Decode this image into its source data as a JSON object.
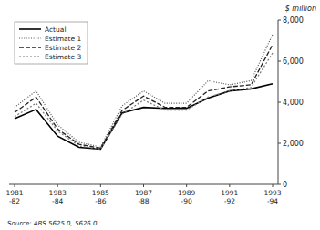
{
  "chart_data": {
    "type": "line",
    "categories": [
      "1981\n-82",
      null,
      "1983\n-84",
      null,
      "1985\n-86",
      null,
      "1987\n-88",
      null,
      "1989\n-90",
      null,
      "1991\n-92",
      null,
      "1993\n-94"
    ],
    "series": [
      {
        "name": "Actual",
        "color": "#000000",
        "line_style": "solid",
        "values": [
          3200,
          3650,
          2350,
          1800,
          1720,
          3480,
          3750,
          3700,
          3700,
          4200,
          4550,
          4650,
          4900
        ]
      },
      {
        "name": "Estimate 1",
        "color": "#555555",
        "line_style": "dotted",
        "values": [
          3750,
          4550,
          2900,
          2050,
          1820,
          3820,
          4550,
          3950,
          3950,
          5050,
          4850,
          5050,
          7300
        ]
      },
      {
        "name": "Estimate 2",
        "color": "#222222",
        "line_style": "dashed",
        "values": [
          3500,
          4250,
          2700,
          1950,
          1760,
          3600,
          4300,
          3750,
          3750,
          4550,
          4750,
          4850,
          6800
        ]
      },
      {
        "name": "Estimate 3",
        "color": "#777777",
        "line_style": "short-dashed",
        "values": [
          3300,
          3950,
          2600,
          1870,
          1710,
          3420,
          4100,
          3620,
          3620,
          4250,
          4550,
          4720,
          6400
        ]
      }
    ],
    "ylim": [
      0,
      8000
    ],
    "yticks": [
      0,
      {
        "value": 2000,
        "label": "2,000"
      },
      {
        "value": 4000,
        "label": "4,000"
      },
      {
        "value": 6000,
        "label": "6,000"
      },
      {
        "value": 8000,
        "label": "8,000"
      }
    ],
    "ylabel": "$ million",
    "source": "Source:  ABS 5625.0, 5626.0",
    "grid": false,
    "legend": "upper left"
  }
}
